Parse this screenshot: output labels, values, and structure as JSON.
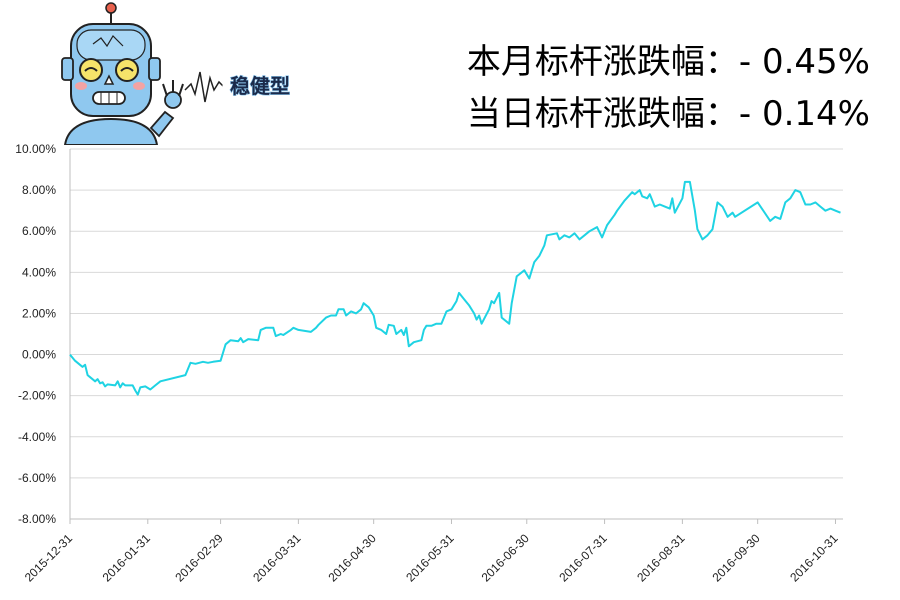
{
  "header": {
    "badge_text": "稳健型",
    "monthly_label": "本月标杆涨跌幅：",
    "monthly_value": "- 0.45%",
    "daily_label": "当日标杆涨跌幅：",
    "daily_value": "- 0.14%"
  },
  "mascot": {
    "icon": "robot-icon"
  },
  "chart_data": {
    "type": "line",
    "title": "",
    "xlabel": "",
    "ylabel": "",
    "ylim": [
      -8,
      10
    ],
    "yticks": [
      "10.00%",
      "8.00%",
      "6.00%",
      "4.00%",
      "2.00%",
      "0.00%",
      "-2.00%",
      "-4.00%",
      "-6.00%",
      "-8.00%"
    ],
    "ytick_values": [
      10,
      8,
      6,
      4,
      2,
      0,
      -2,
      -4,
      -6,
      -8
    ],
    "xlim": [
      "2015-12-31",
      "2016-11-03"
    ],
    "xticks": [
      "2015-12-31",
      "2016-01-31",
      "2016-02-29",
      "2016-03-31",
      "2016-04-30",
      "2016-05-31",
      "2016-06-30",
      "2016-07-31",
      "2016-08-31",
      "2016-09-30",
      "2016-10-31"
    ],
    "grid": "horizontal",
    "series": [
      {
        "color": "#1fd3e3",
        "points": [
          [
            "2015-12-31",
            0.0
          ],
          [
            "2016-01-02",
            -0.3
          ],
          [
            "2016-01-04",
            -0.5
          ],
          [
            "2016-01-05",
            -0.6
          ],
          [
            "2016-01-06",
            -0.5
          ],
          [
            "2016-01-07",
            -1.0
          ],
          [
            "2016-01-08",
            -1.1
          ],
          [
            "2016-01-10",
            -1.3
          ],
          [
            "2016-01-11",
            -1.2
          ],
          [
            "2016-01-12",
            -1.4
          ],
          [
            "2016-01-13",
            -1.35
          ],
          [
            "2016-01-14",
            -1.55
          ],
          [
            "2016-01-15",
            -1.45
          ],
          [
            "2016-01-18",
            -1.5
          ],
          [
            "2016-01-19",
            -1.3
          ],
          [
            "2016-01-20",
            -1.6
          ],
          [
            "2016-01-21",
            -1.4
          ],
          [
            "2016-01-22",
            -1.5
          ],
          [
            "2016-01-25",
            -1.5
          ],
          [
            "2016-01-26",
            -1.75
          ],
          [
            "2016-01-27",
            -1.95
          ],
          [
            "2016-01-28",
            -1.6
          ],
          [
            "2016-01-30",
            -1.55
          ],
          [
            "2016-02-01",
            -1.7
          ],
          [
            "2016-02-03",
            -1.5
          ],
          [
            "2016-02-05",
            -1.3
          ],
          [
            "2016-02-15",
            -1.0
          ],
          [
            "2016-02-17",
            -0.4
          ],
          [
            "2016-02-19",
            -0.45
          ],
          [
            "2016-02-22",
            -0.35
          ],
          [
            "2016-02-24",
            -0.4
          ],
          [
            "2016-02-26",
            -0.35
          ],
          [
            "2016-02-29",
            -0.3
          ],
          [
            "2016-03-02",
            0.5
          ],
          [
            "2016-03-04",
            0.7
          ],
          [
            "2016-03-07",
            0.65
          ],
          [
            "2016-03-08",
            0.8
          ],
          [
            "2016-03-09",
            0.6
          ],
          [
            "2016-03-11",
            0.75
          ],
          [
            "2016-03-15",
            0.7
          ],
          [
            "2016-03-16",
            1.2
          ],
          [
            "2016-03-18",
            1.3
          ],
          [
            "2016-03-21",
            1.3
          ],
          [
            "2016-03-22",
            0.9
          ],
          [
            "2016-03-24",
            1.0
          ],
          [
            "2016-03-25",
            0.95
          ],
          [
            "2016-03-28",
            1.2
          ],
          [
            "2016-03-29",
            1.3
          ],
          [
            "2016-03-31",
            1.2
          ],
          [
            "2016-04-05",
            1.1
          ],
          [
            "2016-04-07",
            1.3
          ],
          [
            "2016-04-08",
            1.45
          ],
          [
            "2016-04-11",
            1.8
          ],
          [
            "2016-04-13",
            1.9
          ],
          [
            "2016-04-15",
            1.9
          ],
          [
            "2016-04-16",
            2.2
          ],
          [
            "2016-04-18",
            2.2
          ],
          [
            "2016-04-19",
            1.9
          ],
          [
            "2016-04-21",
            2.1
          ],
          [
            "2016-04-23",
            2.0
          ],
          [
            "2016-04-25",
            2.2
          ],
          [
            "2016-04-26",
            2.5
          ],
          [
            "2016-04-28",
            2.3
          ],
          [
            "2016-04-30",
            1.9
          ],
          [
            "2016-05-01",
            1.3
          ],
          [
            "2016-05-03",
            1.2
          ],
          [
            "2016-05-05",
            1.0
          ],
          [
            "2016-05-06",
            1.45
          ],
          [
            "2016-05-08",
            1.4
          ],
          [
            "2016-05-09",
            1.0
          ],
          [
            "2016-05-11",
            1.2
          ],
          [
            "2016-05-12",
            0.95
          ],
          [
            "2016-05-13",
            1.3
          ],
          [
            "2016-05-14",
            0.4
          ],
          [
            "2016-05-16",
            0.6
          ],
          [
            "2016-05-19",
            0.7
          ],
          [
            "2016-05-20",
            1.2
          ],
          [
            "2016-05-21",
            1.4
          ],
          [
            "2016-05-23",
            1.4
          ],
          [
            "2016-05-25",
            1.5
          ],
          [
            "2016-05-27",
            1.5
          ],
          [
            "2016-05-29",
            2.1
          ],
          [
            "2016-05-31",
            2.2
          ],
          [
            "2016-06-02",
            2.6
          ],
          [
            "2016-06-03",
            3.0
          ],
          [
            "2016-06-05",
            2.7
          ],
          [
            "2016-06-07",
            2.4
          ],
          [
            "2016-06-09",
            2.0
          ],
          [
            "2016-06-10",
            1.7
          ],
          [
            "2016-06-11",
            1.9
          ],
          [
            "2016-06-12",
            1.5
          ],
          [
            "2016-06-15",
            2.2
          ],
          [
            "2016-06-16",
            2.6
          ],
          [
            "2016-06-17",
            2.5
          ],
          [
            "2016-06-19",
            3.0
          ],
          [
            "2016-06-20",
            1.8
          ],
          [
            "2016-06-23",
            1.5
          ],
          [
            "2016-06-24",
            2.5
          ],
          [
            "2016-06-26",
            3.8
          ],
          [
            "2016-06-29",
            4.1
          ],
          [
            "2016-07-01",
            3.7
          ],
          [
            "2016-07-03",
            4.5
          ],
          [
            "2016-07-05",
            4.8
          ],
          [
            "2016-07-07",
            5.3
          ],
          [
            "2016-07-08",
            5.8
          ],
          [
            "2016-07-12",
            5.9
          ],
          [
            "2016-07-13",
            5.6
          ],
          [
            "2016-07-15",
            5.8
          ],
          [
            "2016-07-17",
            5.7
          ],
          [
            "2016-07-19",
            5.9
          ],
          [
            "2016-07-21",
            5.6
          ],
          [
            "2016-07-23",
            5.8
          ],
          [
            "2016-07-25",
            6.0
          ],
          [
            "2016-07-28",
            6.2
          ],
          [
            "2016-07-30",
            5.7
          ],
          [
            "2016-08-01",
            6.3
          ],
          [
            "2016-08-04",
            6.8
          ],
          [
            "2016-08-05",
            7.0
          ],
          [
            "2016-08-08",
            7.5
          ],
          [
            "2016-08-11",
            7.9
          ],
          [
            "2016-08-12",
            7.8
          ],
          [
            "2016-08-14",
            8.0
          ],
          [
            "2016-08-15",
            7.7
          ],
          [
            "2016-08-17",
            7.6
          ],
          [
            "2016-08-18",
            7.8
          ],
          [
            "2016-08-20",
            7.2
          ],
          [
            "2016-08-22",
            7.3
          ],
          [
            "2016-08-24",
            7.2
          ],
          [
            "2016-08-26",
            7.1
          ],
          [
            "2016-08-27",
            7.6
          ],
          [
            "2016-08-28",
            6.9
          ],
          [
            "2016-08-31",
            7.6
          ],
          [
            "2016-09-01",
            8.4
          ],
          [
            "2016-09-03",
            8.4
          ],
          [
            "2016-09-05",
            7.0
          ],
          [
            "2016-09-06",
            6.1
          ],
          [
            "2016-09-08",
            5.6
          ],
          [
            "2016-09-10",
            5.8
          ],
          [
            "2016-09-12",
            6.1
          ],
          [
            "2016-09-14",
            7.4
          ],
          [
            "2016-09-16",
            7.2
          ],
          [
            "2016-09-18",
            6.7
          ],
          [
            "2016-09-20",
            6.9
          ],
          [
            "2016-09-21",
            6.7
          ],
          [
            "2016-09-30",
            7.4
          ],
          [
            "2016-10-05",
            6.5
          ],
          [
            "2016-10-07",
            6.7
          ],
          [
            "2016-10-09",
            6.6
          ],
          [
            "2016-10-11",
            7.4
          ],
          [
            "2016-10-13",
            7.6
          ],
          [
            "2016-10-15",
            8.0
          ],
          [
            "2016-10-17",
            7.9
          ],
          [
            "2016-10-19",
            7.3
          ],
          [
            "2016-10-21",
            7.3
          ],
          [
            "2016-10-23",
            7.4
          ],
          [
            "2016-10-25",
            7.2
          ],
          [
            "2016-10-27",
            7.0
          ],
          [
            "2016-10-29",
            7.1
          ],
          [
            "2016-10-31",
            7.0
          ],
          [
            "2016-11-02",
            6.9
          ]
        ]
      }
    ]
  }
}
